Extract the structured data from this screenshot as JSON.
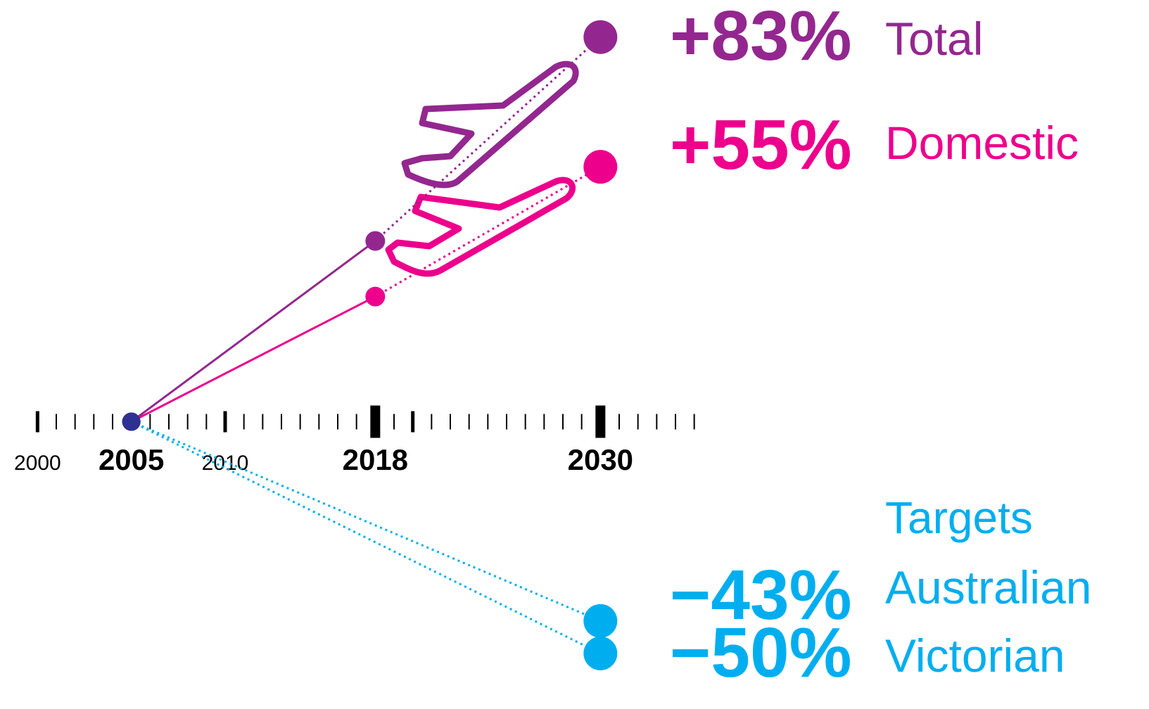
{
  "chart_data": {
    "type": "line",
    "xlim": [
      1998,
      2037
    ],
    "ylim": [
      -62,
      91
    ],
    "xticks": [
      2000,
      2005,
      2010,
      2018,
      2030
    ],
    "xtick_bold": [
      false,
      true,
      false,
      true,
      true
    ],
    "minor_xticks": [
      2000,
      2001,
      2002,
      2003,
      2004,
      2005,
      2006,
      2007,
      2008,
      2009,
      2010,
      2011,
      2012,
      2013,
      2014,
      2015,
      2016,
      2017,
      2018,
      2019,
      2020,
      2021,
      2022,
      2023,
      2024,
      2025,
      2026,
      2027,
      2028,
      2029,
      2030,
      2031,
      2032,
      2033,
      2034,
      2035
    ],
    "medium_xticks": [
      2000,
      2010,
      2020
    ],
    "thick_xticks": [
      2018,
      2030
    ],
    "origin_color": "#2e3192",
    "targets_title": "Targets",
    "series": [
      {
        "name": "Total",
        "color": "#93278f",
        "x": [
          2005,
          2018,
          2030
        ],
        "values": [
          0,
          39,
          83
        ],
        "value_labels": [
          null,
          null,
          "+83%"
        ],
        "dashed_from": 2018
      },
      {
        "name": "Domestic",
        "color": "#ec008c",
        "x": [
          2005,
          2018,
          2030
        ],
        "values": [
          0,
          27,
          55
        ],
        "value_labels": [
          null,
          null,
          "+55%"
        ],
        "dashed_from": 2018
      },
      {
        "name": "Australian",
        "color": "#00aeef",
        "x": [
          2005,
          2030
        ],
        "values": [
          0,
          -43
        ],
        "value_labels": [
          null,
          "−43%"
        ],
        "dashed_from": 2005
      },
      {
        "name": "Victorian",
        "color": "#00aeef",
        "x": [
          2005,
          2030
        ],
        "values": [
          0,
          -50
        ],
        "value_labels": [
          null,
          "−50%"
        ],
        "dashed_from": 2005
      }
    ]
  }
}
